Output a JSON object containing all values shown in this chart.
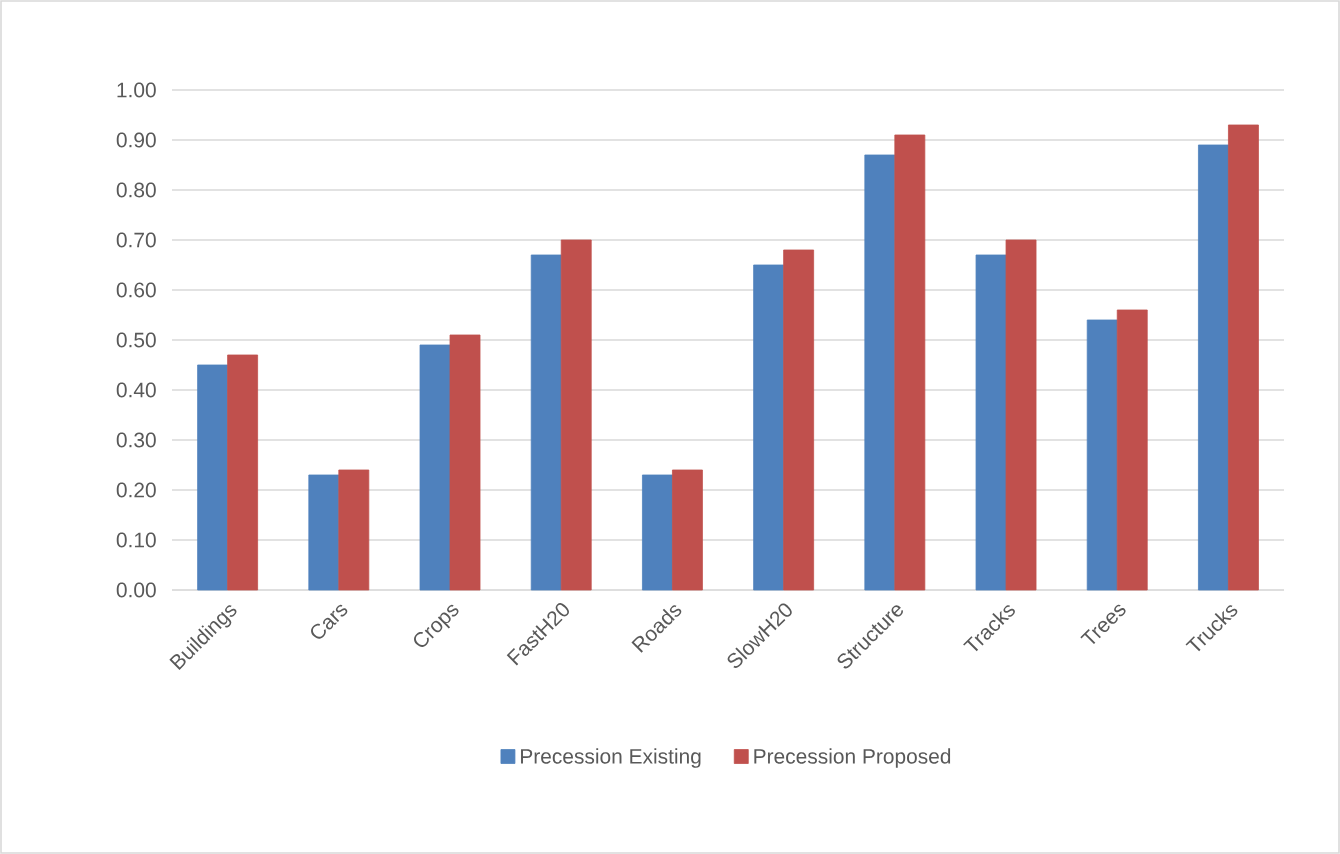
{
  "chart_data": {
    "type": "bar",
    "categories": [
      "Buildings",
      "Cars",
      "Crops",
      "FastH20",
      "Roads",
      "SlowH20",
      "Structure",
      "Tracks",
      "Trees",
      "Trucks"
    ],
    "series": [
      {
        "name": "Precession Existing",
        "color": "#4f81bd",
        "values": [
          0.45,
          0.23,
          0.49,
          0.67,
          0.23,
          0.65,
          0.87,
          0.67,
          0.54,
          0.89
        ]
      },
      {
        "name": "Precession Proposed",
        "color": "#c0504d",
        "values": [
          0.47,
          0.24,
          0.51,
          0.7,
          0.24,
          0.68,
          0.91,
          0.7,
          0.56,
          0.93
        ]
      }
    ],
    "ylim": [
      0,
      1
    ],
    "yticks": [
      {
        "value": 0,
        "label": "0.00"
      },
      {
        "value": 0.1,
        "label": "0.10"
      },
      {
        "value": 0.2,
        "label": "0.20"
      },
      {
        "value": 0.3,
        "label": "0.30"
      },
      {
        "value": 0.4,
        "label": "0.40"
      },
      {
        "value": 0.5,
        "label": "0.50"
      },
      {
        "value": 0.6,
        "label": "0.60"
      },
      {
        "value": 0.7,
        "label": "0.70"
      },
      {
        "value": 0.8,
        "label": "0.80"
      },
      {
        "value": 0.9,
        "label": "0.90"
      },
      {
        "value": 1,
        "label": "1.00"
      }
    ],
    "grid": "y",
    "legend": "bottom"
  }
}
